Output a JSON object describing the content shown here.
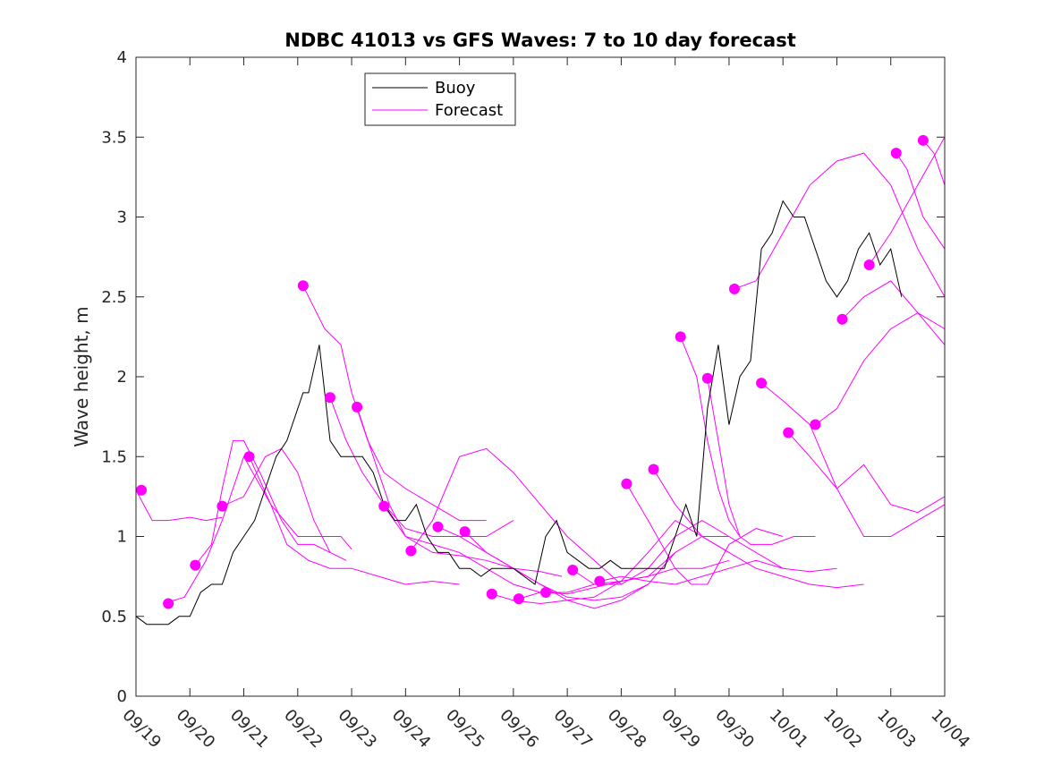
{
  "chart_data": {
    "type": "line",
    "title": "NDBC 41013 vs GFS Waves: 7 to 10 day forecast",
    "xlabel": "",
    "ylabel": "Wave height, m",
    "xlim": [
      0,
      15
    ],
    "ylim": [
      0,
      4
    ],
    "x_ticks": [
      0,
      1,
      2,
      3,
      4,
      5,
      6,
      7,
      8,
      9,
      10,
      11,
      12,
      13,
      14,
      15
    ],
    "x_tick_labels": [
      "09/19",
      "09/20",
      "09/21",
      "09/22",
      "09/23",
      "09/24",
      "09/25",
      "09/26",
      "09/27",
      "09/28",
      "09/29",
      "09/30",
      "10/01",
      "10/02",
      "10/03",
      "10/04"
    ],
    "y_ticks": [
      0,
      0.5,
      1,
      1.5,
      2,
      2.5,
      3,
      3.5,
      4
    ],
    "y_tick_labels": [
      "0",
      "0.5",
      "1",
      "1.5",
      "2",
      "2.5",
      "3",
      "3.5",
      "4"
    ],
    "legend": {
      "position": "top-left",
      "entries": [
        {
          "label": "Buoy",
          "color": "#000000"
        },
        {
          "label": "Forecast",
          "color": "#ff00ff"
        }
      ]
    },
    "colors": {
      "buoy": "#000000",
      "forecast": "#ff00ff",
      "axis": "#262626"
    },
    "buoy": {
      "x": [
        0,
        0.2,
        0.4,
        0.6,
        0.8,
        1.0,
        1.2,
        1.4,
        1.6,
        1.8,
        2.0,
        2.2,
        2.4,
        2.6,
        2.8,
        3.0,
        3.1,
        3.2,
        3.4,
        3.6,
        3.8,
        4.0,
        4.2,
        4.4,
        4.6,
        4.8,
        5.0,
        5.2,
        5.4,
        5.6,
        5.8,
        6.0,
        6.2,
        6.4,
        6.6,
        6.8,
        7.0,
        7.2,
        7.4,
        7.6,
        7.8,
        8.0,
        8.2,
        8.4,
        8.6,
        8.8,
        9.0,
        9.2,
        9.4,
        9.6,
        9.8,
        10.0,
        10.2,
        10.4,
        10.6,
        10.8,
        11.0,
        11.2,
        11.4,
        11.6,
        11.8,
        12.0,
        12.2,
        12.4,
        12.6,
        12.8,
        13.0,
        13.2,
        13.4,
        13.6,
        13.8,
        14.0,
        14.2
      ],
      "y": [
        0.5,
        0.45,
        0.45,
        0.45,
        0.5,
        0.5,
        0.65,
        0.7,
        0.7,
        0.9,
        1.0,
        1.1,
        1.3,
        1.5,
        1.6,
        1.8,
        1.9,
        1.9,
        2.2,
        1.6,
        1.5,
        1.5,
        1.5,
        1.4,
        1.2,
        1.1,
        1.1,
        1.2,
        1.0,
        0.9,
        0.9,
        0.8,
        0.8,
        0.75,
        0.8,
        0.8,
        0.8,
        0.75,
        0.7,
        1.0,
        1.1,
        0.9,
        0.85,
        0.8,
        0.8,
        0.85,
        0.8,
        0.8,
        0.8,
        0.8,
        0.8,
        1.0,
        1.2,
        1.0,
        1.8,
        2.2,
        1.7,
        2.0,
        2.1,
        2.8,
        2.9,
        3.1,
        3.0,
        3.0,
        2.8,
        2.6,
        2.5,
        2.6,
        2.8,
        2.9,
        2.7,
        2.8,
        2.5
      ]
    },
    "forecasts": [
      {
        "x": [
          0,
          0.3,
          0.6,
          1.0,
          1.3,
          1.6
        ],
        "y": [
          1.29,
          1.1,
          1.1,
          1.12,
          1.1,
          1.12
        ]
      },
      {
        "x": [
          0.5,
          0.9,
          1.3,
          1.6,
          2.0,
          2.5,
          3.0,
          3.5,
          3.8,
          4.0
        ],
        "y": [
          0.58,
          0.62,
          0.85,
          1.1,
          1.5,
          1.2,
          1.0,
          1.0,
          1.0,
          0.92
        ]
      },
      {
        "x": [
          1.1,
          1.4,
          1.6,
          1.8,
          2.0,
          2.3,
          2.7,
          3.0,
          3.3,
          3.6
        ],
        "y": [
          0.82,
          0.95,
          1.3,
          1.6,
          1.6,
          1.4,
          1.1,
          0.95,
          0.95,
          0.9
        ]
      },
      {
        "x": [
          1.6,
          2.0,
          2.4,
          2.7,
          3.0,
          3.3,
          3.6,
          3.9
        ],
        "y": [
          1.19,
          1.25,
          1.5,
          1.55,
          1.4,
          1.1,
          0.9,
          0.85
        ]
      },
      {
        "x": [
          2.1,
          2.5,
          2.8,
          3.2,
          3.6,
          4.0,
          4.5,
          5.0,
          5.5,
          6.0
        ],
        "y": [
          1.5,
          1.2,
          0.95,
          0.85,
          0.8,
          0.8,
          0.75,
          0.7,
          0.72,
          0.7
        ]
      },
      {
        "x": [
          3.1,
          3.5,
          3.8,
          4.0,
          4.3,
          4.6,
          5.0,
          5.5,
          6.0,
          6.5
        ],
        "y": [
          2.57,
          2.3,
          2.2,
          1.9,
          1.6,
          1.4,
          1.3,
          1.2,
          1.1,
          1.1
        ]
      },
      {
        "x": [
          3.6,
          3.9,
          4.2,
          4.6,
          5.0,
          5.5,
          6.0,
          6.5,
          7.0
        ],
        "y": [
          1.87,
          1.6,
          1.4,
          1.2,
          1.05,
          1.0,
          1.0,
          1.0,
          1.1
        ]
      },
      {
        "x": [
          4.1,
          4.4,
          4.7,
          5.0,
          5.5,
          6.0,
          6.5,
          7.0,
          7.5
        ],
        "y": [
          1.81,
          1.5,
          1.2,
          1.0,
          0.95,
          0.9,
          0.8,
          0.7,
          0.65
        ]
      },
      {
        "x": [
          4.6,
          5.0,
          5.5,
          6.0,
          6.5,
          7.0,
          7.5,
          7.9
        ],
        "y": [
          1.19,
          1.0,
          0.9,
          0.88,
          0.85,
          0.8,
          0.78,
          0.75
        ]
      },
      {
        "x": [
          5.1,
          5.5,
          6.0,
          6.5,
          7.0,
          7.5,
          8.0,
          8.5,
          9.0
        ],
        "y": [
          0.91,
          1.1,
          1.5,
          1.55,
          1.4,
          1.2,
          1.0,
          0.85,
          0.7
        ]
      },
      {
        "x": [
          5.6,
          6.0,
          6.5,
          7.0,
          7.5,
          8.0,
          8.5,
          9.0,
          9.5
        ],
        "y": [
          1.06,
          1.0,
          0.9,
          0.8,
          0.7,
          0.62,
          0.6,
          0.62,
          0.7
        ]
      },
      {
        "x": [
          6.1,
          6.5,
          7.0,
          7.5,
          8.0,
          8.5,
          9.0,
          9.5,
          10.0
        ],
        "y": [
          1.03,
          0.9,
          0.8,
          0.7,
          0.6,
          0.55,
          0.6,
          0.7,
          0.9
        ]
      },
      {
        "x": [
          6.6,
          7.0,
          7.5,
          8.0,
          8.5,
          9.0,
          9.5,
          10.0,
          10.5,
          11.0
        ],
        "y": [
          0.64,
          0.6,
          0.58,
          0.6,
          0.62,
          0.72,
          0.9,
          1.1,
          1.0,
          0.9
        ]
      },
      {
        "x": [
          7.1,
          7.5,
          8.0,
          8.5,
          9.0,
          9.5,
          10.0,
          10.5,
          11.0
        ],
        "y": [
          0.61,
          0.65,
          0.65,
          0.7,
          0.7,
          0.8,
          1.0,
          1.1,
          1.0
        ]
      },
      {
        "x": [
          7.6,
          8.0,
          8.5,
          9.0,
          9.5,
          10.0,
          10.5,
          11.0,
          11.5,
          12.0
        ],
        "y": [
          0.65,
          0.64,
          0.68,
          0.72,
          0.75,
          0.9,
          1.0,
          1.0,
          0.9,
          0.8
        ]
      },
      {
        "x": [
          8.1,
          8.5,
          9.0,
          9.5,
          10.0,
          10.5,
          11.0
        ],
        "y": [
          0.79,
          0.7,
          0.72,
          0.75,
          0.8,
          0.8,
          0.85
        ]
      },
      {
        "x": [
          8.6,
          9.0,
          9.5,
          10.0,
          10.5,
          11.0,
          11.5,
          12.0,
          12.5,
          13.0
        ],
        "y": [
          0.72,
          0.75,
          0.72,
          0.7,
          0.75,
          0.8,
          0.85,
          0.8,
          0.78,
          0.8
        ]
      },
      {
        "x": [
          9.1,
          9.5,
          10.0,
          10.3,
          10.6,
          11.0,
          11.5,
          12.0
        ],
        "y": [
          1.33,
          1.1,
          0.8,
          0.7,
          0.7,
          0.95,
          1.05,
          1.0
        ]
      },
      {
        "x": [
          9.6,
          10.0,
          10.5,
          11.0,
          11.5,
          12.0,
          12.5,
          13.0,
          13.5
        ],
        "y": [
          1.42,
          1.2,
          1.0,
          0.9,
          0.8,
          0.75,
          0.7,
          0.68,
          0.7
        ]
      },
      {
        "x": [
          10.1,
          10.4,
          10.6,
          10.8,
          11.0,
          11.2
        ],
        "y": [
          2.25,
          2.0,
          1.6,
          1.3,
          1.1,
          1.0
        ]
      },
      {
        "x": [
          10.6,
          10.8,
          11.0,
          11.2,
          11.4,
          11.8,
          12.2,
          12.6
        ],
        "y": [
          1.99,
          1.6,
          1.2,
          1.0,
          0.95,
          0.95,
          1.0,
          1.0
        ]
      },
      {
        "x": [
          11.1,
          11.5,
          12.0,
          12.5,
          13.0,
          13.5,
          14.0,
          14.5,
          15.0
        ],
        "y": [
          2.55,
          2.6,
          2.9,
          3.2,
          3.35,
          3.4,
          3.2,
          2.8,
          2.5
        ]
      },
      {
        "x": [
          11.6,
          12.0,
          12.5,
          13.0,
          13.5,
          14.0,
          14.5,
          15.0
        ],
        "y": [
          1.96,
          1.85,
          1.7,
          1.3,
          1.0,
          1.0,
          1.1,
          1.2
        ]
      },
      {
        "x": [
          12.1,
          12.5,
          13.0,
          13.5,
          14.0,
          14.5,
          15.0
        ],
        "y": [
          1.65,
          1.5,
          1.3,
          1.45,
          1.2,
          1.15,
          1.25
        ]
      },
      {
        "x": [
          12.6,
          13.0,
          13.5,
          14.0,
          14.5,
          15.0
        ],
        "y": [
          1.7,
          1.8,
          2.1,
          2.3,
          2.4,
          2.3
        ]
      },
      {
        "x": [
          13.1,
          13.5,
          14.0,
          14.5,
          15.0
        ],
        "y": [
          2.36,
          2.5,
          2.6,
          2.4,
          2.2
        ]
      },
      {
        "x": [
          13.6,
          14.0,
          14.5,
          15.0
        ],
        "y": [
          2.7,
          2.9,
          3.2,
          3.5
        ]
      },
      {
        "x": [
          14.1,
          14.3,
          14.6,
          15.0
        ],
        "y": [
          3.4,
          3.3,
          3.0,
          2.8
        ]
      },
      {
        "x": [
          14.6,
          14.8,
          15.0
        ],
        "y": [
          3.48,
          3.4,
          3.2
        ]
      }
    ],
    "forecast_markers": {
      "x": [
        0.1,
        0.6,
        1.1,
        1.6,
        2.1,
        3.1,
        3.6,
        4.1,
        4.6,
        5.1,
        5.6,
        6.1,
        6.6,
        7.1,
        7.6,
        8.1,
        8.6,
        9.1,
        9.6,
        10.1,
        10.6,
        11.1,
        11.6,
        12.1,
        12.6,
        13.1,
        13.6,
        14.1,
        14.6
      ],
      "y": [
        1.29,
        0.58,
        0.82,
        1.19,
        1.5,
        2.57,
        1.87,
        1.81,
        1.19,
        0.91,
        1.06,
        1.03,
        0.64,
        0.61,
        0.65,
        0.79,
        0.72,
        1.33,
        1.42,
        2.25,
        1.99,
        2.55,
        1.96,
        1.65,
        1.7,
        2.36,
        2.7,
        3.4,
        3.48
      ]
    }
  }
}
